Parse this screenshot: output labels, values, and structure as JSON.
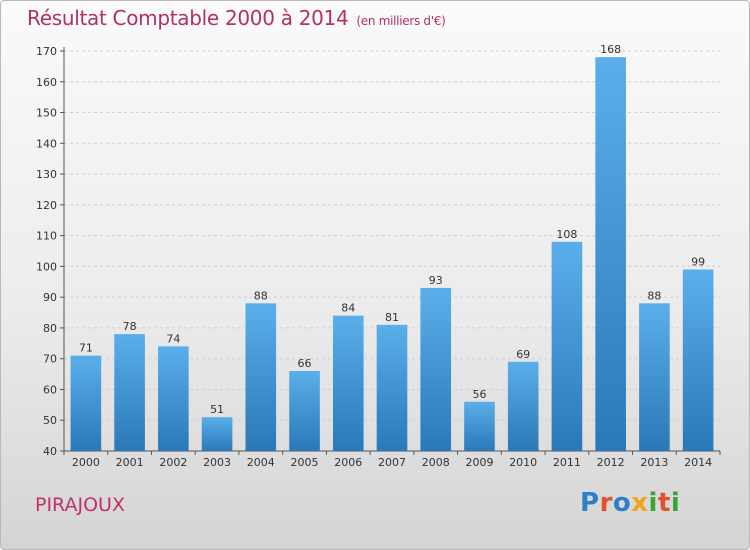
{
  "header": {
    "title": "Résultat Comptable 2000 à 2014",
    "subtitle": "(en milliers d'€)"
  },
  "footer": {
    "commune": "PIRAJOUX",
    "logo_text": "Proxiti"
  },
  "colors": {
    "title": "#b0306a",
    "bar_top": "#5aafea",
    "bar_bottom": "#2a78b8",
    "grid": "#cfcfcf"
  },
  "chart_data": {
    "type": "bar",
    "title": "Résultat Comptable 2000 à 2014",
    "xlabel": "",
    "ylabel": "",
    "categories": [
      "2000",
      "2001",
      "2002",
      "2003",
      "2004",
      "2005",
      "2006",
      "2007",
      "2008",
      "2009",
      "2010",
      "2011",
      "2012",
      "2013",
      "2014"
    ],
    "values": [
      71,
      78,
      74,
      51,
      88,
      66,
      84,
      81,
      93,
      56,
      69,
      108,
      168,
      88,
      99
    ],
    "ylim": [
      40,
      170
    ],
    "yticks": [
      40,
      50,
      60,
      70,
      80,
      90,
      100,
      110,
      120,
      130,
      140,
      150,
      160,
      170
    ],
    "grid": true
  }
}
